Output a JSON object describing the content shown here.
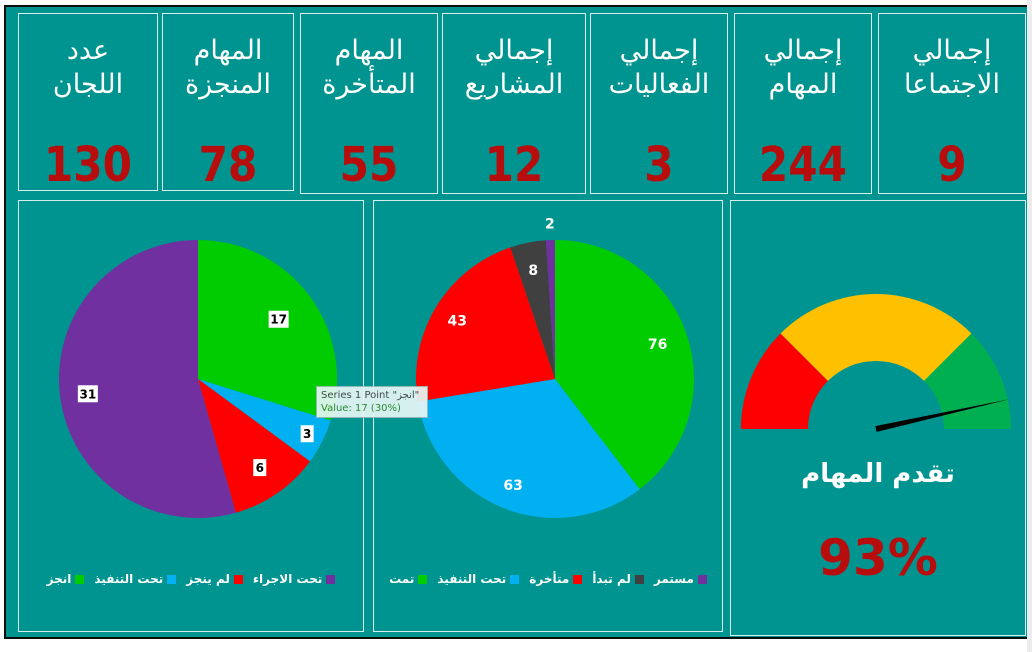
{
  "kpis": [
    {
      "label": "إجمالي\nالاجتماعا",
      "value": "9"
    },
    {
      "label": "إجمالي\nالمهام",
      "value": "244"
    },
    {
      "label": "إجمالي\nالفعاليات",
      "value": "3"
    },
    {
      "label": "إجمالي\nالمشاريع",
      "value": "12"
    },
    {
      "label": "المهام\nالمتأخرة",
      "value": "55"
    },
    {
      "label": "المهام\nالمنجزة",
      "value": "78"
    },
    {
      "label": "عدد\nاللجان",
      "value": "130"
    }
  ],
  "colors": {
    "background": "#009490",
    "value_red": "#b80d0d",
    "green": "#00cc00",
    "blue": "#00b0f0",
    "red": "#ff0000",
    "purple": "#7030a0",
    "dark": "#404040",
    "yellow": "#ffc000",
    "gauge_green": "#00b050"
  },
  "chart_data": [
    {
      "type": "pie",
      "series": [
        {
          "name": "Series 1",
          "values": [
            17,
            3,
            6,
            31
          ]
        }
      ],
      "categories": [
        "انجز",
        "تحت التنفيذ",
        "لم ينجز",
        "تحت الاجراء"
      ],
      "data_labels": [
        "17",
        "3",
        "6",
        "31"
      ],
      "colors": [
        "#00cc00",
        "#00b0f0",
        "#ff0000",
        "#7030a0"
      ],
      "legend": "bottom",
      "tooltip": {
        "line1": "Series 1 Point \"انجز\"",
        "line2": "Value: 17 (30%)"
      }
    },
    {
      "type": "pie",
      "categories": [
        "تمت",
        "تحت التنفيذ",
        "متأخرة",
        "لم تبدأ",
        "مستمر"
      ],
      "values": [
        76,
        63,
        43,
        8,
        2
      ],
      "data_labels": [
        "76",
        "63",
        "43",
        "8",
        "2"
      ],
      "colors": [
        "#00cc00",
        "#00b0f0",
        "#ff0000",
        "#404040",
        "#7030a0"
      ],
      "legend": "bottom"
    },
    {
      "type": "gauge",
      "title": "تقدم المهام",
      "value": 93,
      "value_label": "93%",
      "bands": [
        "red",
        "yellow",
        "green"
      ],
      "band_colors": [
        "#ff0000",
        "#ffc000",
        "#00b050"
      ]
    }
  ]
}
